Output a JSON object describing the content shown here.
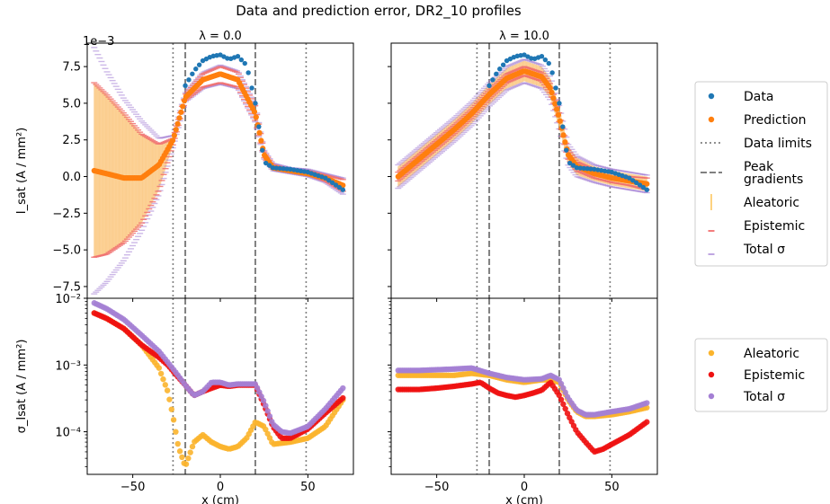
{
  "title": "Data and prediction error, DR2_10 profiles",
  "offset_label": "1e−3",
  "colors": {
    "data": "#1f77b4",
    "prediction": "#ff7f0e",
    "aleatoric_band": "#fbc477",
    "aleatoric": "#fbb42c",
    "epistemic_band": "#f07070",
    "epistemic": "#ee1111",
    "total": "#a47fd4",
    "limits": "#808080",
    "peaks": "#808080"
  },
  "legend_top": {
    "items": [
      {
        "label": "Data",
        "symbol": "dot",
        "color": "#1f77b4"
      },
      {
        "label": "Prediction",
        "symbol": "dot",
        "color": "#ff7f0e"
      },
      {
        "label": "Data limits",
        "symbol": "dotted",
        "color": "#808080"
      },
      {
        "label": "Peak\ngradients",
        "symbol": "dashed",
        "color": "#808080"
      },
      {
        "label": "Aleatoric",
        "symbol": "vbar",
        "color": "#fbb42c"
      },
      {
        "label": "Epistemic",
        "symbol": "tick",
        "color": "#ee4444"
      },
      {
        "label": "Total σ",
        "symbol": "tick",
        "color": "#a47fd4"
      }
    ]
  },
  "legend_bottom": {
    "items": [
      {
        "label": "Aleatoric",
        "symbol": "dot",
        "color": "#fbb42c"
      },
      {
        "label": "Epistemic",
        "symbol": "dot",
        "color": "#ee1111"
      },
      {
        "label": "Total σ",
        "symbol": "dot",
        "color": "#a47fd4"
      }
    ]
  },
  "chart_data": [
    {
      "type": "scatter",
      "panel": "top-left",
      "title": "λ = 0.0",
      "ylabel": "I_sat (A / mm²)",
      "xlim": [
        -76,
        76
      ],
      "ylim": [
        -8.3,
        9.1
      ],
      "y_offset_exponent": -3,
      "xticks": [
        -50,
        0,
        50
      ],
      "yticks": [
        -7.5,
        -5.0,
        -2.5,
        0.0,
        2.5,
        5.0,
        7.5
      ],
      "ytick_labels": [
        "−7.5",
        "−5.0",
        "−2.5",
        "0.0",
        "2.5",
        "5.0",
        "7.5"
      ],
      "vlines_dotted": [
        -27,
        49
      ],
      "vlines_dashed": [
        -20,
        20
      ],
      "series": [
        {
          "name": "Data",
          "x": [
            -20,
            -15,
            -10,
            -5,
            0,
            5,
            10,
            15,
            20,
            25,
            30,
            40,
            50,
            60,
            70
          ],
          "y": [
            6.2,
            7.2,
            7.9,
            8.2,
            8.3,
            8.0,
            8.2,
            7.6,
            5.0,
            1.0,
            0.6,
            0.5,
            0.3,
            -0.1,
            -0.9
          ]
        },
        {
          "name": "Prediction",
          "x": [
            -72,
            -65,
            -55,
            -45,
            -35,
            -27,
            -20,
            -10,
            0,
            10,
            20,
            25,
            30,
            40,
            50,
            60,
            70
          ],
          "y": [
            0.4,
            0.2,
            -0.1,
            -0.1,
            0.8,
            2.5,
            5.4,
            6.6,
            7.0,
            6.6,
            4.3,
            1.5,
            0.6,
            0.4,
            0.2,
            -0.1,
            -0.6
          ]
        },
        {
          "name": "Aleatoric",
          "x": [
            -72,
            -65,
            -55,
            -45,
            -35,
            -27,
            -20
          ],
          "lower": [
            -5.5,
            -5.3,
            -4.5,
            -3.2,
            -0.9,
            2.2,
            5.2
          ],
          "upper": [
            6.4,
            5.6,
            4.3,
            2.9,
            2.2,
            2.6,
            5.5
          ]
        },
        {
          "name": "Epistemic",
          "x": [
            -72,
            -65,
            -55,
            -45,
            -35,
            -27,
            -20,
            -10,
            0,
            10,
            20,
            25,
            30,
            40,
            50,
            60,
            70
          ],
          "lower": [
            -5.5,
            -5.3,
            -4.5,
            -3.2,
            -0.9,
            2.2,
            5.2,
            6.1,
            6.4,
            6.1,
            3.8,
            1.3,
            0.5,
            0.3,
            0.1,
            -0.3,
            -1.0
          ],
          "upper": [
            6.4,
            5.6,
            4.3,
            2.9,
            2.2,
            2.6,
            5.6,
            7.0,
            7.5,
            7.1,
            4.8,
            1.7,
            0.8,
            0.5,
            0.4,
            0.1,
            -0.2
          ]
        },
        {
          "name": "Total σ",
          "x": [
            -72,
            -65,
            -55,
            -45,
            -35,
            -27,
            -20,
            -10,
            0,
            10,
            20,
            25,
            30,
            40,
            50,
            60,
            70
          ],
          "lower": [
            -8.0,
            -7.2,
            -5.7,
            -3.7,
            -1.2,
            2.0,
            5.1,
            6.0,
            6.3,
            6.0,
            3.7,
            1.2,
            0.4,
            0.2,
            0.0,
            -0.4,
            -1.2
          ],
          "upper": [
            8.8,
            7.2,
            5.3,
            3.8,
            2.6,
            2.8,
            5.7,
            7.1,
            7.6,
            7.2,
            4.9,
            1.8,
            0.9,
            0.6,
            0.5,
            0.2,
            -0.1
          ]
        }
      ]
    },
    {
      "type": "scatter",
      "panel": "top-right",
      "title": "λ = 10.0",
      "xlim": [
        -76,
        76
      ],
      "ylim": [
        -8.3,
        9.1
      ],
      "xticks": [
        -50,
        0,
        50
      ],
      "vlines_dotted": [
        -27,
        49
      ],
      "vlines_dashed": [
        -20,
        20
      ],
      "series": [
        {
          "name": "Data",
          "x": [
            -20,
            -15,
            -10,
            -5,
            0,
            5,
            10,
            15,
            20,
            25,
            30,
            40,
            50,
            60,
            70
          ],
          "y": [
            6.2,
            7.2,
            7.9,
            8.2,
            8.3,
            8.0,
            8.2,
            7.6,
            5.0,
            1.0,
            0.6,
            0.5,
            0.3,
            -0.1,
            -0.9
          ]
        },
        {
          "name": "Prediction",
          "x": [
            -72,
            -60,
            -50,
            -40,
            -30,
            -20,
            -10,
            0,
            10,
            15,
            20,
            25,
            30,
            40,
            50,
            60,
            70
          ],
          "y": [
            0.0,
            1.2,
            2.2,
            3.2,
            4.3,
            5.6,
            6.7,
            7.2,
            6.8,
            6.0,
            4.0,
            1.5,
            0.7,
            0.2,
            -0.1,
            -0.3,
            -0.5
          ]
        },
        {
          "name": "Aleatoric",
          "x": [
            -72,
            -60,
            -50,
            -40,
            -30,
            -20,
            -10,
            0,
            10,
            15,
            20,
            25,
            30,
            40,
            50,
            60,
            70
          ],
          "lower": [
            -0.7,
            0.5,
            1.5,
            2.5,
            3.6,
            4.9,
            6.0,
            6.5,
            6.1,
            5.3,
            3.3,
            0.9,
            0.1,
            -0.3,
            -0.6,
            -0.8,
            -1.0
          ],
          "upper": [
            0.7,
            1.9,
            2.9,
            3.9,
            5.0,
            6.3,
            7.4,
            7.9,
            7.5,
            6.7,
            4.7,
            2.1,
            1.3,
            0.7,
            0.4,
            0.2,
            0.0
          ]
        },
        {
          "name": "Epistemic",
          "x": [
            -72,
            -60,
            -50,
            -40,
            -30,
            -20,
            -10,
            0,
            10,
            15,
            20,
            25,
            30,
            40,
            50,
            60,
            70
          ],
          "lower": [
            -0.3,
            0.9,
            1.9,
            2.9,
            4.0,
            5.3,
            6.4,
            6.9,
            6.5,
            5.7,
            3.7,
            1.2,
            0.4,
            -0.1,
            -0.4,
            -0.6,
            -0.9
          ],
          "upper": [
            0.3,
            1.5,
            2.5,
            3.5,
            4.6,
            5.9,
            7.0,
            7.5,
            7.1,
            6.3,
            4.3,
            1.8,
            1.0,
            0.5,
            0.2,
            0.0,
            -0.1
          ]
        },
        {
          "name": "Total σ",
          "x": [
            -72,
            -60,
            -50,
            -40,
            -30,
            -20,
            -10,
            0,
            10,
            15,
            20,
            25,
            30,
            40,
            50,
            60,
            70
          ],
          "lower": [
            -0.8,
            0.4,
            1.4,
            2.4,
            3.5,
            4.8,
            5.9,
            6.4,
            6.0,
            5.2,
            3.2,
            0.8,
            0.0,
            -0.4,
            -0.7,
            -0.9,
            -1.1
          ],
          "upper": [
            0.8,
            2.0,
            3.0,
            4.0,
            5.1,
            6.4,
            7.5,
            8.0,
            7.6,
            6.8,
            4.8,
            2.2,
            1.4,
            0.8,
            0.5,
            0.3,
            0.1
          ]
        }
      ]
    },
    {
      "type": "scatter",
      "panel": "bottom-left",
      "xlabel": "x (cm)",
      "ylabel": "σ_Isat (A / mm²)",
      "yscale": "log",
      "xlim": [
        -76,
        76
      ],
      "ylim": [
        2.3e-05,
        0.01
      ],
      "xticks": [
        -50,
        0,
        50
      ],
      "xtick_labels": [
        "−50",
        "0",
        "50"
      ],
      "yticks": [
        0.0001,
        0.001,
        0.01
      ],
      "ytick_labels": [
        "10⁻⁴",
        "10⁻³",
        "10⁻²"
      ],
      "vlines_dotted": [
        -27,
        49
      ],
      "vlines_dashed": [
        -20,
        20
      ],
      "series": [
        {
          "name": "Aleatoric",
          "x": [
            -72,
            -65,
            -55,
            -45,
            -35,
            -30,
            -27,
            -24,
            -20,
            -15,
            -10,
            -5,
            0,
            5,
            10,
            15,
            20,
            25,
            30,
            40,
            50,
            60,
            70
          ],
          "y": [
            0.006,
            0.005,
            0.0035,
            0.002,
            0.0009,
            0.0004,
            0.00017,
            6e-05,
            3e-05,
            7e-05,
            9e-05,
            7e-05,
            6e-05,
            5.5e-05,
            6e-05,
            8e-05,
            0.00014,
            0.00012,
            6.5e-05,
            7e-05,
            8e-05,
            0.00012,
            0.0003
          ]
        },
        {
          "name": "Epistemic",
          "x": [
            -72,
            -65,
            -55,
            -45,
            -35,
            -30,
            -25,
            -20,
            -15,
            -10,
            -5,
            0,
            5,
            10,
            15,
            20,
            25,
            30,
            35,
            40,
            50,
            60,
            70
          ],
          "y": [
            0.006,
            0.005,
            0.0035,
            0.002,
            0.0013,
            0.001,
            0.0007,
            0.0005,
            0.00035,
            0.0004,
            0.00045,
            0.0005,
            0.00048,
            0.0005,
            0.0005,
            0.0005,
            0.00025,
            0.00012,
            8e-05,
            8e-05,
            0.00011,
            0.00019,
            0.00032
          ]
        },
        {
          "name": "Total σ",
          "x": [
            -72,
            -65,
            -55,
            -45,
            -35,
            -30,
            -25,
            -20,
            -15,
            -10,
            -5,
            0,
            5,
            10,
            15,
            20,
            25,
            30,
            35,
            40,
            50,
            60,
            70
          ],
          "y": [
            0.0085,
            0.007,
            0.0048,
            0.0028,
            0.0016,
            0.0011,
            0.00075,
            0.0005,
            0.00035,
            0.0004,
            0.00055,
            0.00055,
            0.0005,
            0.00052,
            0.00052,
            0.00052,
            0.00028,
            0.00013,
            0.0001,
            9.5e-05,
            0.00012,
            0.00022,
            0.00045
          ]
        }
      ]
    },
    {
      "type": "scatter",
      "panel": "bottom-right",
      "xlabel": "x (cm)",
      "yscale": "log",
      "xlim": [
        -76,
        76
      ],
      "ylim": [
        2.3e-05,
        0.01
      ],
      "xticks": [
        -50,
        0,
        50
      ],
      "xtick_labels": [
        "−50",
        "0",
        "50"
      ],
      "vlines_dotted": [
        -27,
        49
      ],
      "vlines_dashed": [
        -20,
        20
      ],
      "series": [
        {
          "name": "Aleatoric",
          "x": [
            -72,
            -60,
            -50,
            -40,
            -30,
            -20,
            -10,
            0,
            10,
            15,
            20,
            25,
            30,
            35,
            40,
            50,
            60,
            70
          ],
          "y": [
            0.0007,
            0.0007,
            0.0007,
            0.0007,
            0.00075,
            0.0007,
            0.0006,
            0.00055,
            0.0006,
            0.0006,
            0.00055,
            0.0003,
            0.0002,
            0.00017,
            0.00017,
            0.00018,
            0.0002,
            0.00023
          ]
        },
        {
          "name": "Epistemic",
          "x": [
            -72,
            -60,
            -50,
            -40,
            -30,
            -25,
            -20,
            -15,
            -10,
            -5,
            0,
            5,
            10,
            15,
            20,
            25,
            30,
            35,
            40,
            45,
            50,
            60,
            70
          ],
          "y": [
            0.00043,
            0.00043,
            0.00045,
            0.00048,
            0.00052,
            0.00055,
            0.00045,
            0.00038,
            0.00035,
            0.00033,
            0.00035,
            0.00038,
            0.00042,
            0.00055,
            0.00035,
            0.00018,
            0.0001,
            7e-05,
            5e-05,
            5.5e-05,
            6.5e-05,
            9e-05,
            0.00014
          ]
        },
        {
          "name": "Total σ",
          "x": [
            -72,
            -60,
            -50,
            -40,
            -30,
            -20,
            -10,
            0,
            10,
            15,
            20,
            25,
            30,
            35,
            40,
            50,
            60,
            70
          ],
          "y": [
            0.00083,
            0.00083,
            0.00085,
            0.00087,
            0.0009,
            0.00075,
            0.00065,
            0.0006,
            0.00062,
            0.0007,
            0.0006,
            0.00032,
            0.00021,
            0.00018,
            0.00018,
            0.0002,
            0.00022,
            0.00027
          ]
        }
      ]
    }
  ]
}
